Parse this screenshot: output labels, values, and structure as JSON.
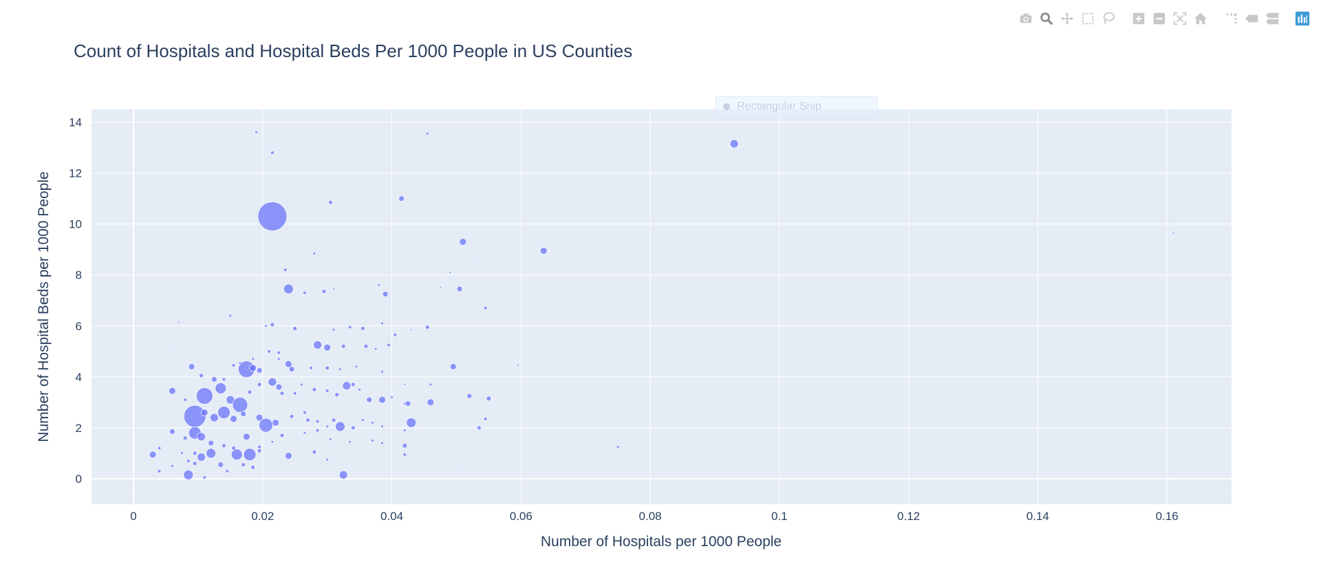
{
  "modebar": {
    "buttons": [
      {
        "name": "camera-icon",
        "group": 1
      },
      {
        "name": "zoom-icon",
        "group": 1,
        "active": true
      },
      {
        "name": "pan-icon",
        "group": 1
      },
      {
        "name": "box-select-icon",
        "group": 1
      },
      {
        "name": "lasso-select-icon",
        "group": 1
      },
      {
        "name": "zoom-in-icon",
        "group": 2
      },
      {
        "name": "zoom-out-icon",
        "group": 2
      },
      {
        "name": "autoscale-icon",
        "group": 2
      },
      {
        "name": "reset-axes-icon",
        "group": 2
      },
      {
        "name": "spike-lines-icon",
        "group": 3
      },
      {
        "name": "hover-closest-icon",
        "group": 3
      },
      {
        "name": "hover-compare-icon",
        "group": 3
      },
      {
        "name": "plotly-logo-icon",
        "group": 4
      }
    ],
    "colors": {
      "icon": "#c8c8c8",
      "active": "#8a8a8a",
      "logo": "#3f9bd6"
    }
  },
  "overlay": {
    "label": "Rectangular Snip"
  },
  "chart_data": {
    "type": "scatter",
    "mode": "bubble",
    "title": "Count of Hospitals and Hospital Beds Per 1000 People in US Counties",
    "xlabel": "Number of Hospitals per 1000 People",
    "ylabel": "Number of Hospital Beds per 1000 People",
    "xlim": [
      -0.0065,
      0.17
    ],
    "ylim": [
      -1,
      14.5
    ],
    "xticks": [
      0,
      0.02,
      0.04,
      0.06,
      0.08,
      0.1,
      0.12,
      0.14,
      0.16
    ],
    "xtick_labels": [
      "0",
      "0.02",
      "0.04",
      "0.06",
      "0.08",
      "0.1",
      "0.12",
      "0.14",
      "0.16"
    ],
    "yticks": [
      0,
      2,
      4,
      6,
      8,
      10,
      12,
      14
    ],
    "ytick_labels": [
      "0",
      "2",
      "4",
      "6",
      "8",
      "10",
      "12",
      "14"
    ],
    "grid": true,
    "colors": {
      "marker": "#636efa",
      "plot_bg": "#e5ecf6",
      "grid": "#ffffff",
      "text": "#2a3f5f"
    },
    "points": [
      [
        0.0215,
        10.3,
        21
      ],
      [
        0.093,
        13.15,
        6
      ],
      [
        0.019,
        13.6,
        2
      ],
      [
        0.0455,
        13.55,
        2
      ],
      [
        0.0215,
        12.8,
        2.5
      ],
      [
        0.0415,
        11.0,
        4
      ],
      [
        0.0305,
        10.85,
        3
      ],
      [
        0.051,
        9.3,
        5
      ],
      [
        0.0635,
        8.95,
        5
      ],
      [
        0.161,
        9.65,
        1.5
      ],
      [
        0.028,
        8.85,
        2
      ],
      [
        0.0235,
        8.2,
        2.5
      ],
      [
        0.049,
        8.1,
        1.5
      ],
      [
        0.0525,
        8.5,
        1
      ],
      [
        0.024,
        7.45,
        7
      ],
      [
        0.038,
        7.6,
        2
      ],
      [
        0.039,
        7.25,
        4
      ],
      [
        0.0505,
        7.45,
        4
      ],
      [
        0.0475,
        7.5,
        1.5
      ],
      [
        0.0265,
        7.3,
        2.5
      ],
      [
        0.0295,
        7.35,
        3
      ],
      [
        0.031,
        7.45,
        1.5
      ],
      [
        0.045,
        6.95,
        1
      ],
      [
        0.0545,
        6.7,
        2.5
      ],
      [
        0.015,
        6.4,
        2
      ],
      [
        0.007,
        6.15,
        1.5
      ],
      [
        0.0055,
        5.0,
        1
      ],
      [
        0.0205,
        6.0,
        2
      ],
      [
        0.0215,
        6.05,
        3
      ],
      [
        0.025,
        5.9,
        3
      ],
      [
        0.031,
        5.85,
        2
      ],
      [
        0.0335,
        5.95,
        2.5
      ],
      [
        0.0355,
        5.9,
        3
      ],
      [
        0.0385,
        6.1,
        2
      ],
      [
        0.043,
        5.85,
        1.5
      ],
      [
        0.0455,
        5.95,
        3
      ],
      [
        0.0405,
        5.65,
        2.5
      ],
      [
        0.0285,
        5.25,
        6
      ],
      [
        0.03,
        5.15,
        5
      ],
      [
        0.0325,
        5.2,
        3
      ],
      [
        0.036,
        5.2,
        3
      ],
      [
        0.0375,
        5.1,
        2
      ],
      [
        0.0395,
        5.25,
        2.5
      ],
      [
        0.021,
        5.0,
        2.5
      ],
      [
        0.0225,
        4.95,
        2.5
      ],
      [
        0.0185,
        4.7,
        2
      ],
      [
        0.0175,
        4.3,
        12
      ],
      [
        0.0185,
        4.35,
        5
      ],
      [
        0.0195,
        4.25,
        4
      ],
      [
        0.009,
        4.4,
        4.5
      ],
      [
        0.0105,
        4.05,
        3
      ],
      [
        0.0125,
        3.9,
        4
      ],
      [
        0.014,
        3.9,
        2.5
      ],
      [
        0.0155,
        4.45,
        2.5
      ],
      [
        0.0165,
        4.55,
        2
      ],
      [
        0.0225,
        4.7,
        2
      ],
      [
        0.024,
        4.5,
        5
      ],
      [
        0.0245,
        4.3,
        4
      ],
      [
        0.0275,
        4.35,
        2.5
      ],
      [
        0.03,
        4.35,
        3
      ],
      [
        0.032,
        4.3,
        2
      ],
      [
        0.0345,
        4.4,
        2
      ],
      [
        0.0385,
        4.2,
        2
      ],
      [
        0.0495,
        4.4,
        4.5
      ],
      [
        0.0595,
        4.45,
        1.5
      ],
      [
        0.006,
        3.45,
        5
      ],
      [
        0.008,
        3.1,
        2.5
      ],
      [
        0.011,
        3.25,
        12
      ],
      [
        0.0135,
        3.55,
        8
      ],
      [
        0.015,
        3.1,
        6
      ],
      [
        0.0165,
        2.9,
        11
      ],
      [
        0.018,
        3.4,
        3
      ],
      [
        0.0195,
        3.7,
        3
      ],
      [
        0.0215,
        3.8,
        6
      ],
      [
        0.0225,
        3.6,
        4.5
      ],
      [
        0.023,
        3.35,
        3
      ],
      [
        0.025,
        3.35,
        2.5
      ],
      [
        0.026,
        3.7,
        2
      ],
      [
        0.028,
        3.5,
        3
      ],
      [
        0.03,
        3.45,
        2.5
      ],
      [
        0.0315,
        3.3,
        3
      ],
      [
        0.033,
        3.65,
        6
      ],
      [
        0.034,
        3.7,
        3
      ],
      [
        0.035,
        3.5,
        2
      ],
      [
        0.0365,
        3.1,
        4
      ],
      [
        0.0385,
        3.1,
        5
      ],
      [
        0.04,
        3.2,
        2
      ],
      [
        0.042,
        3.7,
        1.5
      ],
      [
        0.042,
        2.95,
        2
      ],
      [
        0.0425,
        2.95,
        4
      ],
      [
        0.046,
        3.0,
        5
      ],
      [
        0.046,
        3.7,
        2
      ],
      [
        0.052,
        3.25,
        3.5
      ],
      [
        0.055,
        3.15,
        3.5
      ],
      [
        0.0095,
        2.45,
        16
      ],
      [
        0.011,
        2.6,
        5
      ],
      [
        0.0125,
        2.4,
        6
      ],
      [
        0.014,
        2.6,
        9
      ],
      [
        0.0155,
        2.35,
        5
      ],
      [
        0.017,
        2.55,
        4
      ],
      [
        0.0195,
        2.4,
        5
      ],
      [
        0.0205,
        2.1,
        10
      ],
      [
        0.022,
        2.2,
        5
      ],
      [
        0.0245,
        2.45,
        3
      ],
      [
        0.0265,
        2.6,
        2.5
      ],
      [
        0.027,
        2.3,
        3
      ],
      [
        0.0285,
        2.25,
        2.5
      ],
      [
        0.03,
        2.05,
        2
      ],
      [
        0.031,
        2.3,
        3
      ],
      [
        0.032,
        2.05,
        7
      ],
      [
        0.034,
        2.0,
        3
      ],
      [
        0.0355,
        2.3,
        2
      ],
      [
        0.037,
        2.2,
        2
      ],
      [
        0.0385,
        2.05,
        2
      ],
      [
        0.042,
        1.9,
        2
      ],
      [
        0.043,
        2.2,
        7
      ],
      [
        0.0535,
        2.0,
        3
      ],
      [
        0.0545,
        2.35,
        2.5
      ],
      [
        0.004,
        1.2,
        2.5
      ],
      [
        0.006,
        1.85,
        4
      ],
      [
        0.008,
        1.6,
        3
      ],
      [
        0.0095,
        1.8,
        9
      ],
      [
        0.0105,
        1.65,
        6
      ],
      [
        0.012,
        1.4,
        4
      ],
      [
        0.014,
        1.3,
        3
      ],
      [
        0.0155,
        1.2,
        3
      ],
      [
        0.0175,
        1.65,
        5
      ],
      [
        0.0195,
        1.25,
        2.5
      ],
      [
        0.0215,
        1.45,
        2
      ],
      [
        0.023,
        1.7,
        3
      ],
      [
        0.0265,
        1.8,
        2
      ],
      [
        0.0285,
        1.9,
        2.5
      ],
      [
        0.0305,
        1.55,
        2
      ],
      [
        0.0335,
        1.45,
        2
      ],
      [
        0.037,
        1.5,
        2
      ],
      [
        0.0385,
        1.4,
        2
      ],
      [
        0.042,
        1.3,
        3.5
      ],
      [
        0.042,
        0.95,
        2.5
      ],
      [
        0.003,
        0.95,
        5
      ],
      [
        0.004,
        0.3,
        2.5
      ],
      [
        0.006,
        0.5,
        2
      ],
      [
        0.0075,
        1.0,
        2
      ],
      [
        0.0085,
        0.7,
        2.5
      ],
      [
        0.0085,
        0.15,
        7
      ],
      [
        0.0095,
        0.6,
        3
      ],
      [
        0.0095,
        1.0,
        3
      ],
      [
        0.0105,
        0.85,
        6
      ],
      [
        0.011,
        0.05,
        2.5
      ],
      [
        0.012,
        1.0,
        7
      ],
      [
        0.0135,
        0.55,
        4
      ],
      [
        0.0145,
        0.3,
        2.5
      ],
      [
        0.016,
        0.95,
        8
      ],
      [
        0.017,
        0.55,
        3
      ],
      [
        0.018,
        0.95,
        9
      ],
      [
        0.0185,
        0.45,
        3
      ],
      [
        0.0195,
        1.1,
        3
      ],
      [
        0.024,
        0.9,
        5
      ],
      [
        0.028,
        1.05,
        3
      ],
      [
        0.03,
        0.75,
        2
      ],
      [
        0.0325,
        0.15,
        6
      ],
      [
        0.075,
        1.25,
        2
      ],
      [
        0.051,
        0.5,
        1
      ]
    ]
  }
}
